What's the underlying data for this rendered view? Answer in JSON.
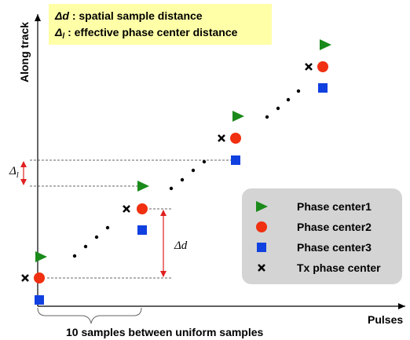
{
  "diagram": {
    "definitions": [
      {
        "symbol": "Δd",
        "text": " : spatial sample distance"
      },
      {
        "symbol": "Δ",
        "subscript": "l",
        "text": " : effective phase center distance"
      }
    ],
    "axes": {
      "y_label": "Along track",
      "x_label": "Pulses"
    },
    "annotations": {
      "delta_l": {
        "symbol": "Δ",
        "subscript": "l"
      },
      "delta_d": "Δd",
      "brace_label": "10 samples between uniform samples"
    },
    "legend": [
      "Phase center1",
      "Phase center2",
      "Phase center3",
      "Tx phase center"
    ]
  }
}
